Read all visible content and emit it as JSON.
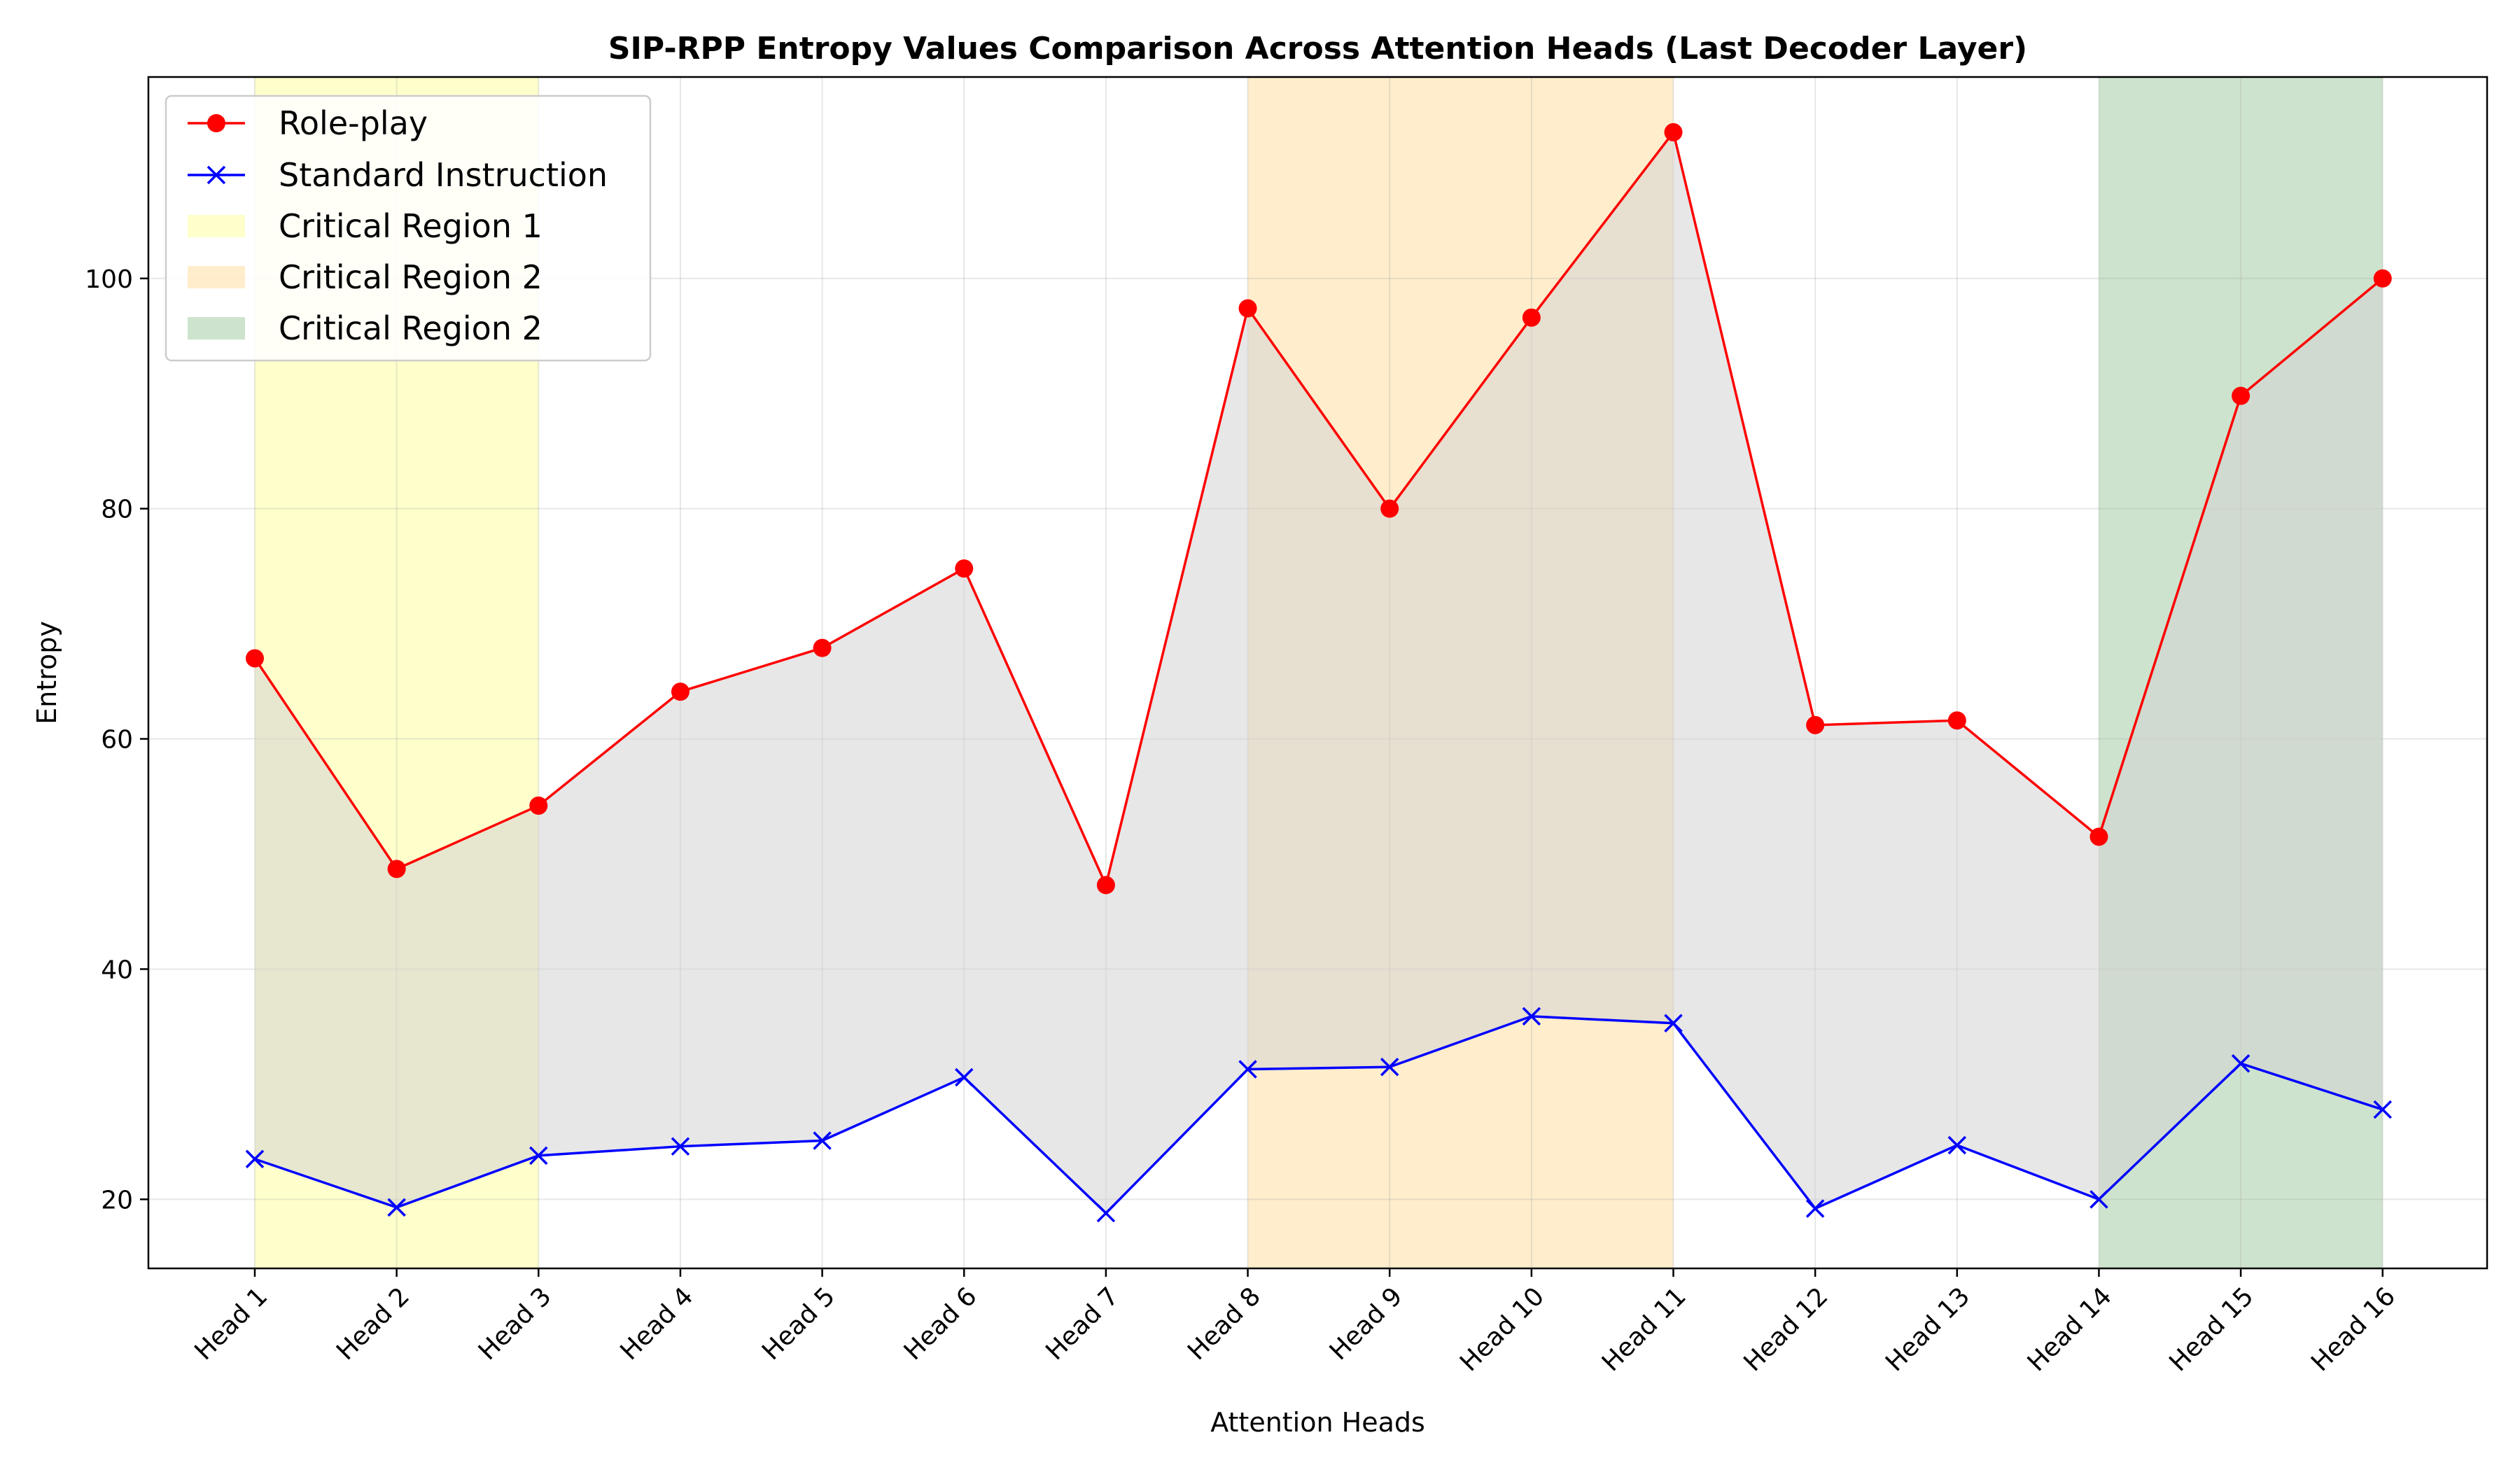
{
  "chart_data": {
    "type": "line",
    "title": "SIP-RPP Entropy Values Comparison Across Attention Heads (Last Decoder Layer)",
    "xlabel": "Attention Heads",
    "ylabel": "Entropy",
    "categories": [
      "Head 1",
      "Head 2",
      "Head 3",
      "Head 4",
      "Head 5",
      "Head 6",
      "Head 7",
      "Head 8",
      "Head 9",
      "Head 10",
      "Head 11",
      "Head 12",
      "Head 13",
      "Head 14",
      "Head 15",
      "Head 16"
    ],
    "series": [
      {
        "name": "Role-play",
        "color": "#ff0000",
        "marker": "circle",
        "values": [
          67.0,
          48.7,
          54.2,
          64.1,
          67.9,
          74.8,
          47.3,
          97.4,
          80.0,
          96.6,
          112.7,
          61.2,
          61.6,
          51.5,
          89.8,
          100.0
        ]
      },
      {
        "name": "Standard Instruction",
        "color": "#0000ff",
        "marker": "x",
        "values": [
          23.5,
          19.3,
          23.8,
          24.6,
          25.1,
          30.6,
          18.8,
          31.3,
          31.5,
          35.9,
          35.3,
          19.2,
          24.7,
          20.0,
          31.8,
          27.8
        ]
      }
    ],
    "fill_between": {
      "color": "#d3d3d3",
      "opacity": 0.55
    },
    "regions": [
      {
        "name": "Critical Region 1",
        "start": 0,
        "end": 2,
        "color": "#ffff99",
        "opacity": 0.5
      },
      {
        "name": "Critical Region 2",
        "start": 7,
        "end": 10,
        "color": "#ffd27f",
        "opacity": 0.4
      },
      {
        "name": "Critical Region 2",
        "start": 13,
        "end": 15,
        "color": "#2e8b2e",
        "opacity": 0.24
      }
    ],
    "ylim": [
      14.0,
      117.5
    ],
    "yticks": [
      20,
      40,
      60,
      80,
      100
    ],
    "grid": true,
    "legend_position": "top-left"
  }
}
